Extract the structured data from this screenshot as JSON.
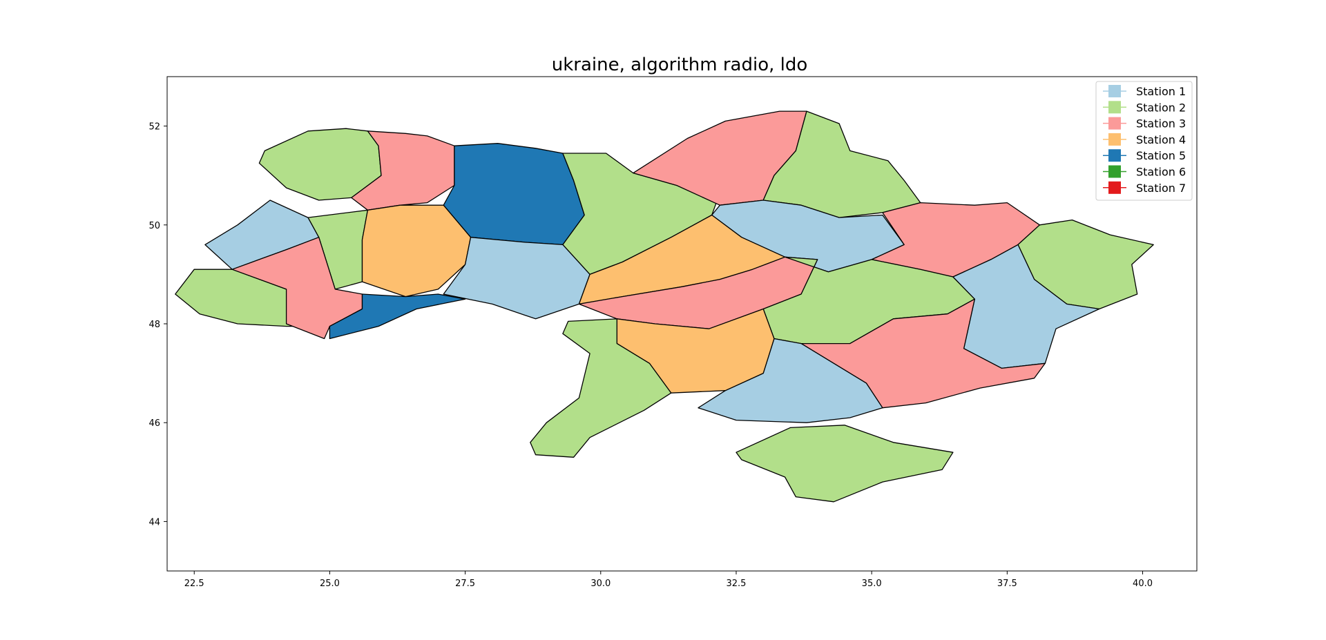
{
  "figure": {
    "title": "ukraine, algorithm radio, ldo"
  },
  "chart_data": {
    "type": "map",
    "title": "ukraine, algorithm radio, ldo",
    "xlabel": "",
    "ylabel": "",
    "xlim": [
      22.0,
      41.0
    ],
    "ylim": [
      43.0,
      53.0
    ],
    "x_ticks": [
      22.5,
      25.0,
      27.5,
      30.0,
      32.5,
      35.0,
      37.5,
      40.0
    ],
    "x_tick_labels": [
      "22.5",
      "25.0",
      "27.5",
      "30.0",
      "32.5",
      "35.0",
      "37.5",
      "40.0"
    ],
    "y_ticks": [
      44,
      46,
      48,
      50,
      52
    ],
    "y_tick_labels": [
      "44",
      "46",
      "48",
      "50",
      "52"
    ],
    "grid": false,
    "legend_position": "top-right",
    "legend": [
      {
        "label": "Station 1",
        "color": "#a6cee3"
      },
      {
        "label": "Station 2",
        "color": "#b2df8a"
      },
      {
        "label": "Station 3",
        "color": "#fb9a99"
      },
      {
        "label": "Station 4",
        "color": "#fdbf6f"
      },
      {
        "label": "Station 5",
        "color": "#1f78b4"
      },
      {
        "label": "Station 6",
        "color": "#33a02c"
      },
      {
        "label": "Station 7",
        "color": "#e31a1c"
      }
    ],
    "regions": [
      {
        "station": 2,
        "color": "#b2df8a",
        "lonlat": [
          [
            23.8,
            51.5
          ],
          [
            24.6,
            51.9
          ],
          [
            25.3,
            51.95
          ],
          [
            25.7,
            51.9
          ],
          [
            25.9,
            51.6
          ],
          [
            25.95,
            51.0
          ],
          [
            25.4,
            50.55
          ],
          [
            24.8,
            50.5
          ],
          [
            24.2,
            50.75
          ],
          [
            23.7,
            51.25
          ]
        ]
      },
      {
        "station": 3,
        "color": "#fb9a99",
        "lonlat": [
          [
            25.7,
            51.9
          ],
          [
            26.4,
            51.85
          ],
          [
            26.8,
            51.8
          ],
          [
            27.3,
            51.6
          ],
          [
            27.3,
            50.8
          ],
          [
            26.8,
            50.45
          ],
          [
            26.3,
            50.4
          ],
          [
            25.7,
            50.3
          ],
          [
            25.4,
            50.55
          ],
          [
            25.95,
            51.0
          ],
          [
            25.9,
            51.6
          ]
        ]
      },
      {
        "station": 5,
        "color": "#1f78b4",
        "lonlat": [
          [
            27.3,
            51.6
          ],
          [
            28.1,
            51.65
          ],
          [
            28.8,
            51.55
          ],
          [
            29.3,
            51.45
          ],
          [
            29.5,
            50.9
          ],
          [
            29.7,
            50.2
          ],
          [
            29.3,
            49.6
          ],
          [
            28.6,
            49.65
          ],
          [
            27.6,
            49.75
          ],
          [
            27.1,
            50.4
          ],
          [
            27.3,
            50.8
          ]
        ]
      },
      {
        "station": 2,
        "color": "#b2df8a",
        "lonlat": [
          [
            29.3,
            51.45
          ],
          [
            30.1,
            51.45
          ],
          [
            30.6,
            51.05
          ],
          [
            31.4,
            50.8
          ],
          [
            32.2,
            50.65
          ],
          [
            32.05,
            50.2
          ],
          [
            31.3,
            49.75
          ],
          [
            30.4,
            49.25
          ],
          [
            29.8,
            49.0
          ],
          [
            29.3,
            49.6
          ],
          [
            29.7,
            50.2
          ],
          [
            29.5,
            50.9
          ]
        ]
      },
      {
        "station": 3,
        "color": "#fb9a99",
        "lonlat": [
          [
            31.6,
            51.75
          ],
          [
            32.3,
            52.1
          ],
          [
            33.3,
            52.3
          ],
          [
            33.8,
            52.3
          ],
          [
            33.6,
            51.5
          ],
          [
            33.2,
            51.0
          ],
          [
            33.0,
            50.5
          ],
          [
            32.2,
            50.4
          ],
          [
            31.4,
            50.8
          ],
          [
            30.6,
            51.05
          ]
        ]
      },
      {
        "station": 2,
        "color": "#b2df8a",
        "lonlat": [
          [
            33.8,
            52.3
          ],
          [
            34.4,
            52.05
          ],
          [
            34.6,
            51.5
          ],
          [
            35.3,
            51.3
          ],
          [
            35.6,
            50.9
          ],
          [
            35.9,
            50.45
          ],
          [
            35.2,
            50.25
          ],
          [
            34.4,
            50.15
          ],
          [
            33.7,
            50.4
          ],
          [
            33.0,
            50.5
          ],
          [
            33.2,
            51.0
          ],
          [
            33.6,
            51.5
          ]
        ]
      },
      {
        "station": 1,
        "color": "#a6cee3",
        "lonlat": [
          [
            22.7,
            49.6
          ],
          [
            23.3,
            50.0
          ],
          [
            23.9,
            50.5
          ],
          [
            24.6,
            50.15
          ],
          [
            24.8,
            49.75
          ],
          [
            24.2,
            49.5
          ],
          [
            23.2,
            49.1
          ]
        ]
      },
      {
        "station": 2,
        "color": "#b2df8a",
        "lonlat": [
          [
            24.6,
            50.15
          ],
          [
            25.7,
            50.3
          ],
          [
            25.6,
            49.7
          ],
          [
            25.6,
            48.85
          ],
          [
            25.1,
            48.7
          ],
          [
            24.8,
            49.75
          ]
        ]
      },
      {
        "station": 4,
        "color": "#fdbf6f",
        "lonlat": [
          [
            25.7,
            50.3
          ],
          [
            26.3,
            50.4
          ],
          [
            27.1,
            50.4
          ],
          [
            27.6,
            49.75
          ],
          [
            27.5,
            49.2
          ],
          [
            27.0,
            48.7
          ],
          [
            26.4,
            48.55
          ],
          [
            25.6,
            48.85
          ],
          [
            25.6,
            49.7
          ]
        ]
      },
      {
        "station": 1,
        "color": "#a6cee3",
        "lonlat": [
          [
            27.6,
            49.75
          ],
          [
            28.6,
            49.65
          ],
          [
            29.3,
            49.6
          ],
          [
            29.8,
            49.0
          ],
          [
            29.6,
            48.4
          ],
          [
            28.8,
            48.1
          ],
          [
            28.0,
            48.4
          ],
          [
            27.1,
            48.6
          ],
          [
            27.5,
            49.2
          ]
        ]
      },
      {
        "station": 1,
        "color": "#a6cee3",
        "lonlat": [
          [
            32.2,
            50.4
          ],
          [
            33.0,
            50.5
          ],
          [
            33.7,
            50.4
          ],
          [
            34.4,
            50.15
          ],
          [
            35.2,
            50.2
          ],
          [
            35.6,
            49.6
          ],
          [
            35.0,
            49.3
          ],
          [
            34.2,
            49.05
          ],
          [
            33.4,
            49.35
          ],
          [
            32.6,
            49.75
          ],
          [
            32.05,
            50.2
          ]
        ]
      },
      {
        "station": 3,
        "color": "#fb9a99",
        "lonlat": [
          [
            35.2,
            50.25
          ],
          [
            35.9,
            50.45
          ],
          [
            36.9,
            50.4
          ],
          [
            37.5,
            50.45
          ],
          [
            38.1,
            50.0
          ],
          [
            37.7,
            49.6
          ],
          [
            37.2,
            49.3
          ],
          [
            36.5,
            48.95
          ],
          [
            35.9,
            49.1
          ],
          [
            35.0,
            49.3
          ],
          [
            35.6,
            49.6
          ]
        ]
      },
      {
        "station": 2,
        "color": "#b2df8a",
        "lonlat": [
          [
            38.1,
            50.0
          ],
          [
            38.7,
            50.1
          ],
          [
            39.4,
            49.8
          ],
          [
            40.2,
            49.6
          ],
          [
            39.8,
            49.2
          ],
          [
            39.9,
            48.6
          ],
          [
            39.2,
            48.3
          ],
          [
            38.6,
            48.4
          ],
          [
            38.0,
            48.9
          ],
          [
            37.7,
            49.6
          ]
        ]
      },
      {
        "station": 4,
        "color": "#fdbf6f",
        "lonlat": [
          [
            29.8,
            49.0
          ],
          [
            30.4,
            49.25
          ],
          [
            31.3,
            49.75
          ],
          [
            32.05,
            50.2
          ],
          [
            32.6,
            49.75
          ],
          [
            33.4,
            49.35
          ],
          [
            32.8,
            49.1
          ],
          [
            32.2,
            48.9
          ],
          [
            31.5,
            48.75
          ],
          [
            30.4,
            48.55
          ],
          [
            29.6,
            48.4
          ]
        ]
      },
      {
        "station": 3,
        "color": "#fb9a99",
        "lonlat": [
          [
            29.6,
            48.4
          ],
          [
            30.4,
            48.55
          ],
          [
            31.5,
            48.75
          ],
          [
            32.2,
            48.9
          ],
          [
            32.8,
            49.1
          ],
          [
            33.4,
            49.35
          ],
          [
            34.0,
            49.3
          ],
          [
            33.7,
            48.6
          ],
          [
            33.0,
            48.3
          ],
          [
            32.0,
            47.9
          ],
          [
            31.0,
            48.0
          ],
          [
            30.3,
            48.1
          ]
        ]
      },
      {
        "station": 2,
        "color": "#b2df8a",
        "lonlat": [
          [
            33.4,
            49.35
          ],
          [
            34.2,
            49.05
          ],
          [
            35.0,
            49.3
          ],
          [
            35.9,
            49.1
          ],
          [
            36.5,
            48.95
          ],
          [
            36.9,
            48.5
          ],
          [
            36.4,
            48.2
          ],
          [
            35.4,
            48.1
          ],
          [
            34.6,
            47.6
          ],
          [
            33.7,
            47.6
          ],
          [
            33.2,
            47.7
          ],
          [
            33.0,
            48.3
          ],
          [
            33.7,
            48.6
          ],
          [
            34.0,
            49.3
          ]
        ]
      },
      {
        "station": 1,
        "color": "#a6cee3",
        "lonlat": [
          [
            36.5,
            48.95
          ],
          [
            37.2,
            49.3
          ],
          [
            37.7,
            49.6
          ],
          [
            38.0,
            48.9
          ],
          [
            38.6,
            48.4
          ],
          [
            39.2,
            48.3
          ],
          [
            38.4,
            47.9
          ],
          [
            38.2,
            47.2
          ],
          [
            37.4,
            47.1
          ],
          [
            36.7,
            47.5
          ],
          [
            36.9,
            48.5
          ]
        ]
      },
      {
        "station": 3,
        "color": "#fb9a99",
        "lonlat": [
          [
            34.6,
            47.6
          ],
          [
            35.4,
            48.1
          ],
          [
            36.4,
            48.2
          ],
          [
            36.9,
            48.5
          ],
          [
            36.7,
            47.5
          ],
          [
            37.4,
            47.1
          ],
          [
            38.2,
            47.2
          ],
          [
            38.0,
            46.9
          ],
          [
            37.0,
            46.7
          ],
          [
            36.0,
            46.4
          ],
          [
            35.2,
            46.3
          ],
          [
            34.9,
            46.8
          ],
          [
            33.7,
            47.6
          ]
        ]
      },
      {
        "station": 1,
        "color": "#a6cee3",
        "lonlat": [
          [
            33.2,
            47.7
          ],
          [
            33.7,
            47.6
          ],
          [
            34.9,
            46.8
          ],
          [
            35.2,
            46.3
          ],
          [
            34.6,
            46.1
          ],
          [
            33.8,
            46.0
          ],
          [
            32.5,
            46.05
          ],
          [
            31.8,
            46.3
          ],
          [
            32.3,
            46.65
          ],
          [
            33.0,
            47.0
          ]
        ]
      },
      {
        "station": 4,
        "color": "#fdbf6f",
        "lonlat": [
          [
            30.3,
            48.1
          ],
          [
            31.0,
            48.0
          ],
          [
            32.0,
            47.9
          ],
          [
            33.0,
            48.3
          ],
          [
            33.2,
            47.7
          ],
          [
            33.0,
            47.0
          ],
          [
            32.3,
            46.65
          ],
          [
            31.3,
            46.6
          ],
          [
            30.9,
            47.2
          ],
          [
            30.3,
            47.6
          ]
        ]
      },
      {
        "station": 2,
        "color": "#b2df8a",
        "lonlat": [
          [
            29.4,
            48.05
          ],
          [
            30.3,
            48.1
          ],
          [
            30.3,
            47.6
          ],
          [
            30.9,
            47.2
          ],
          [
            31.3,
            46.6
          ],
          [
            30.8,
            46.25
          ],
          [
            29.8,
            45.7
          ],
          [
            29.5,
            45.3
          ],
          [
            28.8,
            45.35
          ],
          [
            28.7,
            45.6
          ],
          [
            29.0,
            46.0
          ],
          [
            29.6,
            46.5
          ],
          [
            29.8,
            47.4
          ],
          [
            29.3,
            47.8
          ]
        ]
      },
      {
        "station": 2,
        "color": "#b2df8a",
        "lonlat": [
          [
            32.5,
            45.4
          ],
          [
            33.5,
            45.9
          ],
          [
            34.5,
            45.95
          ],
          [
            35.4,
            45.6
          ],
          [
            36.5,
            45.4
          ],
          [
            36.3,
            45.05
          ],
          [
            35.2,
            44.8
          ],
          [
            34.3,
            44.4
          ],
          [
            33.6,
            44.5
          ],
          [
            33.4,
            44.9
          ],
          [
            32.6,
            45.25
          ]
        ]
      },
      {
        "station": 2,
        "color": "#b2df8a",
        "lonlat": [
          [
            22.15,
            48.6
          ],
          [
            22.5,
            49.1
          ],
          [
            23.2,
            49.1
          ],
          [
            24.2,
            48.7
          ],
          [
            24.8,
            48.3
          ],
          [
            25.0,
            47.95
          ],
          [
            24.2,
            47.95
          ],
          [
            23.3,
            48.0
          ],
          [
            22.6,
            48.2
          ]
        ]
      },
      {
        "station": 3,
        "color": "#fb9a99",
        "lonlat": [
          [
            23.2,
            49.1
          ],
          [
            24.2,
            49.5
          ],
          [
            24.8,
            49.75
          ],
          [
            25.1,
            48.7
          ],
          [
            25.6,
            48.6
          ],
          [
            25.6,
            48.3
          ],
          [
            25.0,
            47.95
          ],
          [
            24.9,
            47.7
          ],
          [
            24.2,
            48.0
          ],
          [
            24.2,
            48.7
          ]
        ]
      },
      {
        "station": 5,
        "color": "#1f78b4",
        "lonlat": [
          [
            25.0,
            47.95
          ],
          [
            25.6,
            48.3
          ],
          [
            25.6,
            48.6
          ],
          [
            26.4,
            48.55
          ],
          [
            27.0,
            48.6
          ],
          [
            27.5,
            48.5
          ],
          [
            26.6,
            48.3
          ],
          [
            25.9,
            47.95
          ],
          [
            25.0,
            47.7
          ]
        ]
      }
    ]
  }
}
